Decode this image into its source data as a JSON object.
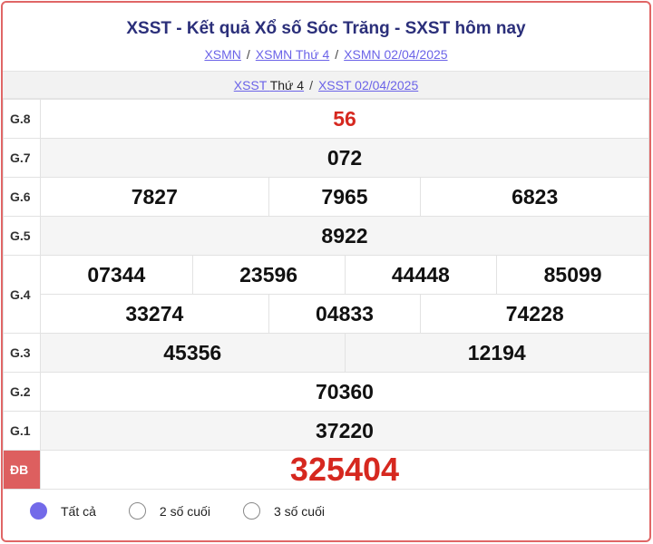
{
  "header": {
    "title": "XSST - Kết quả Xổ số Sóc Trăng - SXST hôm nay",
    "breadcrumbs": [
      "XSMN",
      "XSMN Thứ 4",
      "XSMN 02/04/2025"
    ],
    "sub": {
      "link1": "XSST",
      "day": "Thứ 4",
      "link2": "XSST 02/04/2025"
    }
  },
  "prizes": {
    "g8": {
      "label": "G.8",
      "values": [
        "56"
      ]
    },
    "g7": {
      "label": "G.7",
      "values": [
        "072"
      ]
    },
    "g6": {
      "label": "G.6",
      "values": [
        "7827",
        "7965",
        "6823"
      ]
    },
    "g5": {
      "label": "G.5",
      "values": [
        "8922"
      ]
    },
    "g4": {
      "label": "G.4",
      "values": [
        "07344",
        "23596",
        "44448",
        "85099",
        "33274",
        "04833",
        "74228"
      ]
    },
    "g3": {
      "label": "G.3",
      "values": [
        "45356",
        "12194"
      ]
    },
    "g2": {
      "label": "G.2",
      "values": [
        "70360"
      ]
    },
    "g1": {
      "label": "G.1",
      "values": [
        "37220"
      ]
    },
    "db": {
      "label": "ĐB",
      "values": [
        "325404"
      ]
    }
  },
  "filter": {
    "options": [
      "Tất cả",
      "2 số cuối",
      "3 số cuối"
    ],
    "selected": "Tất cả"
  },
  "colors": {
    "accent": "#736ae9",
    "special": "#d6281f",
    "border": "#e06666"
  }
}
